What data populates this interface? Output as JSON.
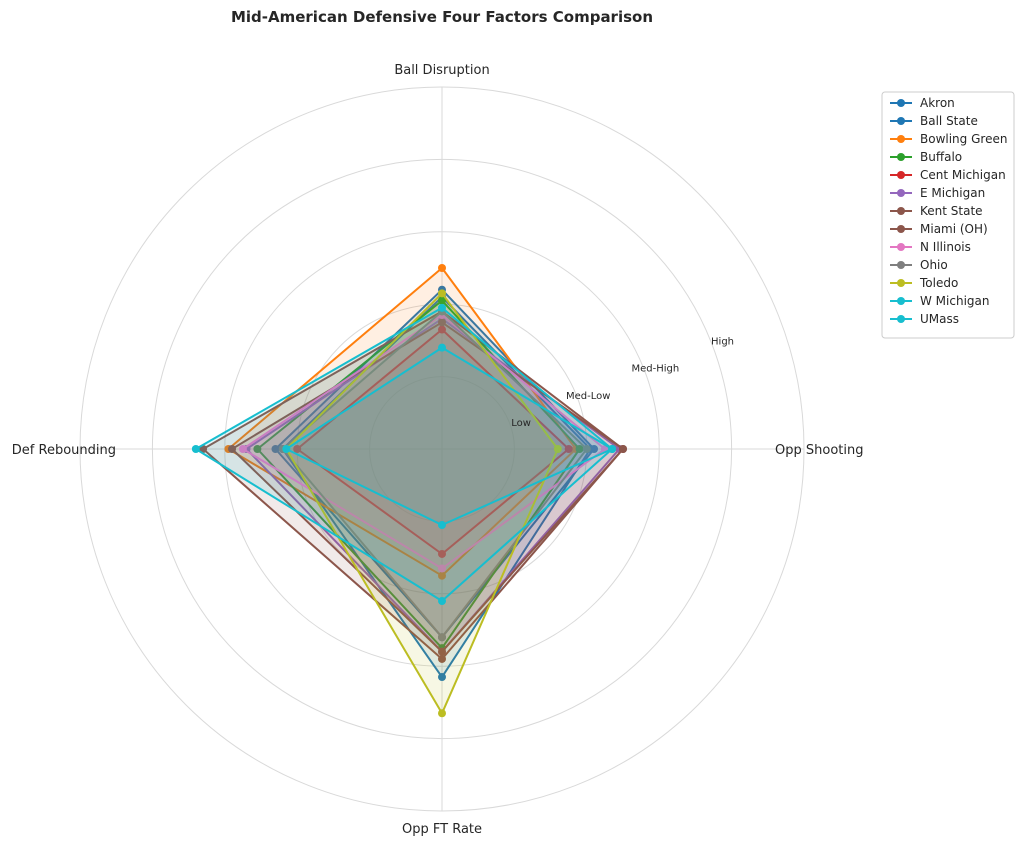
{
  "chart_data": {
    "type": "radar",
    "title": "Mid-American Defensive Four Factors Comparison",
    "axes": [
      "Ball Disruption",
      "Opp Shooting",
      "Opp FT Rate",
      "Def Rebounding"
    ],
    "rings": [
      {
        "value": 1,
        "label": "Low"
      },
      {
        "value": 2,
        "label": "Med-Low"
      },
      {
        "value": 3,
        "label": "Med-High"
      },
      {
        "value": 4,
        "label": "High"
      },
      {
        "value": 5,
        "label": ""
      }
    ],
    "rmax": 5,
    "legend_position": "upper-right-outside",
    "series": [
      {
        "name": "Akron",
        "color": "#1f77b4",
        "values": [
          2.2,
          2.1,
          2.6,
          2.3
        ]
      },
      {
        "name": "Ball State",
        "color": "#1f77b4",
        "values": [
          2.1,
          2.05,
          3.15,
          2.2
        ]
      },
      {
        "name": "Bowling Green",
        "color": "#ff7f0e",
        "values": [
          2.5,
          1.85,
          1.75,
          2.95
        ]
      },
      {
        "name": "Buffalo",
        "color": "#2ca02c",
        "values": [
          2.05,
          1.9,
          2.75,
          2.55
        ]
      },
      {
        "name": "Cent Michigan",
        "color": "#d62728",
        "values": [
          1.65,
          1.75,
          1.45,
          2.0
        ]
      },
      {
        "name": "E Michigan",
        "color": "#9467bd",
        "values": [
          1.8,
          2.45,
          2.8,
          2.7
        ]
      },
      {
        "name": "Kent State",
        "color": "#8c564b",
        "values": [
          1.9,
          2.5,
          2.9,
          3.3
        ]
      },
      {
        "name": "Miami (OH)",
        "color": "#8c564b",
        "values": [
          1.75,
          2.5,
          2.8,
          2.9
        ]
      },
      {
        "name": "N Illinois",
        "color": "#e377c2",
        "values": [
          1.85,
          2.25,
          1.65,
          2.75
        ]
      },
      {
        "name": "Ohio",
        "color": "#7f7f7f",
        "values": [
          1.9,
          2.0,
          2.6,
          2.2
        ]
      },
      {
        "name": "Toledo",
        "color": "#bcbd22",
        "values": [
          2.15,
          1.6,
          3.65,
          2.15
        ]
      },
      {
        "name": "W Michigan",
        "color": "#17becf",
        "values": [
          1.95,
          2.35,
          2.1,
          3.4
        ]
      },
      {
        "name": "UMass",
        "color": "#17becf",
        "values": [
          1.4,
          2.35,
          1.05,
          2.15
        ]
      }
    ]
  }
}
